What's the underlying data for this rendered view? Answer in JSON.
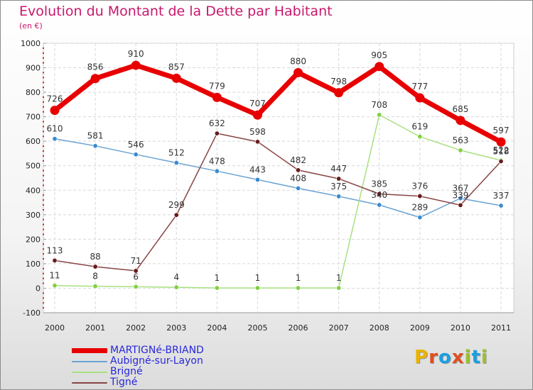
{
  "title": "Evolution du Montant de la Dette par Habitant",
  "unit_label": "(en €)",
  "logo": {
    "text": "Proxiti",
    "colors": [
      "#e8b400",
      "#e05020",
      "#1aa0e0",
      "#e05020",
      "#9ac030",
      "#1aa0e0",
      "#9ac030"
    ]
  },
  "chart_data": {
    "type": "line",
    "title": "Evolution du Montant de la Dette par Habitant",
    "ylabel": "(en €)",
    "xlabel": "",
    "x": [
      "2000",
      "2001",
      "2002",
      "2003",
      "2004",
      "2005",
      "2006",
      "2007",
      "2008",
      "2009",
      "2010",
      "2011"
    ],
    "ylim": [
      -100,
      1000
    ],
    "yticks": [
      "-100",
      "0",
      "100",
      "200",
      "300",
      "400",
      "500",
      "600",
      "700",
      "800",
      "900",
      "1000"
    ],
    "grid": true,
    "legend_position": "bottom",
    "series": [
      {
        "name": "MARTIGNé-BRIAND",
        "color": "#e80000",
        "width": 7,
        "values": [
          726,
          856,
          910,
          857,
          779,
          707,
          880,
          798,
          905,
          777,
          685,
          597
        ],
        "labels": [
          "726",
          "856",
          "910",
          "857",
          "779",
          "707",
          "880",
          "798",
          "905",
          "777",
          "685",
          "597"
        ]
      },
      {
        "name": "Aubigné-sur-Layon",
        "color": "#6aa3d3",
        "width": 1.5,
        "marker": "#3a8ad0",
        "values": [
          610,
          581,
          546,
          512,
          478,
          443,
          408,
          375,
          340,
          289,
          367,
          337
        ],
        "labels": [
          "610",
          "581",
          "546",
          "512",
          "478",
          "443",
          "408",
          "375",
          "340",
          "289",
          "367",
          "337"
        ]
      },
      {
        "name": "Brigné",
        "color": "#a8e080",
        "width": 1.5,
        "marker": "#80d040",
        "values": [
          11,
          8,
          6,
          4,
          1,
          1,
          1,
          1,
          708,
          619,
          563,
          522
        ],
        "labels": [
          "11",
          "8",
          "6",
          "4",
          "1",
          "1",
          "1",
          "1",
          "708",
          "619",
          "563",
          "522"
        ]
      },
      {
        "name": "Tigné",
        "color": "#884444",
        "width": 1.5,
        "marker": "#6a1a1a",
        "values": [
          113,
          88,
          71,
          299,
          632,
          598,
          482,
          447,
          385,
          376,
          339,
          518
        ],
        "labels": [
          "113",
          "88",
          "71",
          "299",
          "632",
          "598",
          "482",
          "447",
          "385",
          "376",
          "339",
          "518"
        ]
      }
    ]
  }
}
